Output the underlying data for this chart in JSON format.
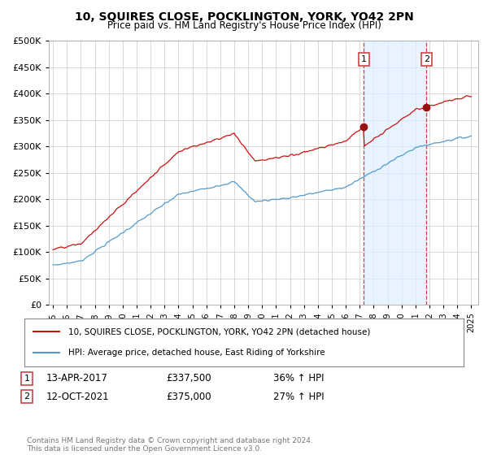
{
  "title": "10, SQUIRES CLOSE, POCKLINGTON, YORK, YO42 2PN",
  "subtitle": "Price paid vs. HM Land Registry's House Price Index (HPI)",
  "sale1_date": "13-APR-2017",
  "sale1_price": 337500,
  "sale1_t": 2017.29,
  "sale2_date": "12-OCT-2021",
  "sale2_price": 375000,
  "sale2_t": 2021.79,
  "sale1_pct": "36% ↑ HPI",
  "sale2_pct": "27% ↑ HPI",
  "legend_line1": "10, SQUIRES CLOSE, POCKLINGTON, YORK, YO42 2PN (detached house)",
  "legend_line2": "HPI: Average price, detached house, East Riding of Yorkshire",
  "footer": "Contains HM Land Registry data © Crown copyright and database right 2024.\nThis data is licensed under the Open Government Licence v3.0.",
  "hpi_color": "#5599cc",
  "price_color": "#cc1111",
  "marker_color": "#991111",
  "dashed_line_color": "#cc4444",
  "shade_color": "#ddeeff",
  "ylim": [
    0,
    500000
  ],
  "yticks": [
    0,
    50000,
    100000,
    150000,
    200000,
    250000,
    300000,
    350000,
    400000,
    450000,
    500000
  ],
  "background_color": "#ffffff",
  "grid_color": "#cccccc",
  "xmin": 1995,
  "xmax": 2025
}
